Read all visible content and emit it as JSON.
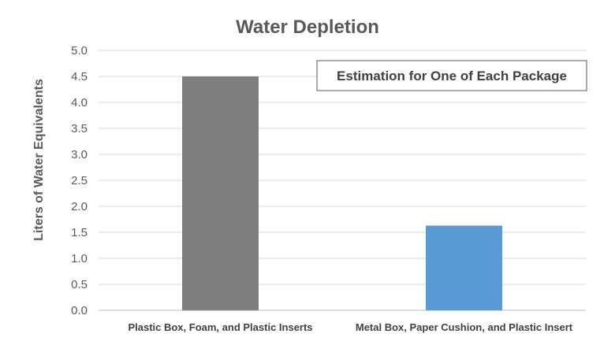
{
  "chart_data": {
    "type": "bar",
    "title": "Water Depletion",
    "ylabel": "Liters of Water Equivalents",
    "xlabel": "",
    "categories": [
      "Plastic Box, Foam, and Plastic Inserts",
      "Metal Box, Paper Cushion, and Plastic Insert"
    ],
    "values": [
      4.5,
      1.63
    ],
    "colors": [
      "#7f7f7f",
      "#5b9bd5"
    ],
    "ylim": [
      0,
      5.0
    ],
    "yticks": [
      "0.0",
      "0.5",
      "1.0",
      "1.5",
      "2.0",
      "2.5",
      "3.0",
      "3.5",
      "4.0",
      "4.5",
      "5.0"
    ],
    "grid": true,
    "annotation": "Estimation for One of Each Package"
  }
}
